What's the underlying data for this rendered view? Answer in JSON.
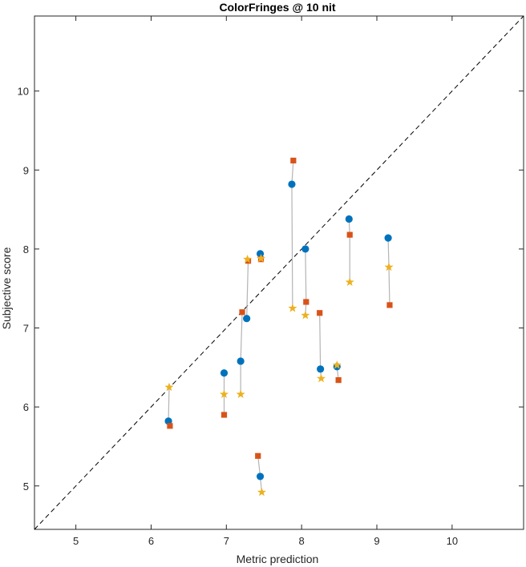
{
  "chart_data": {
    "type": "scatter",
    "title": "ColorFringes @ 10 nit",
    "xlabel": "Metric prediction",
    "ylabel": "Subjective score",
    "xlim": [
      4.45,
      10.95
    ],
    "ylim": [
      4.45,
      10.95
    ],
    "xticks": [
      "5",
      "6",
      "7",
      "8",
      "9",
      "10"
    ],
    "yticks": [
      "5",
      "6",
      "7",
      "8",
      "9",
      "10"
    ],
    "reference_line": "y = x",
    "grid": false,
    "legend": "none",
    "colors": {
      "circle": "#0072BD",
      "square": "#D95319",
      "star": "#EDB120",
      "connector": "#b4b4b4",
      "reference": "#000000",
      "axis": "#262626"
    },
    "groups": [
      {
        "circle": [
          6.23,
          5.82
        ],
        "square": [
          6.25,
          5.76
        ],
        "star": [
          6.24,
          6.25
        ]
      },
      {
        "circle": [
          6.97,
          6.43
        ],
        "square": [
          6.97,
          5.9
        ],
        "star": [
          6.97,
          6.16
        ]
      },
      {
        "circle": [
          7.19,
          6.58
        ],
        "square": [
          7.21,
          7.2
        ],
        "star": [
          7.19,
          6.16
        ]
      },
      {
        "circle": [
          7.27,
          7.12
        ],
        "square": [
          7.29,
          7.85
        ],
        "star": [
          7.28,
          7.87
        ]
      },
      {
        "circle": [
          7.45,
          7.94
        ],
        "square": [
          7.46,
          7.87
        ],
        "star": [
          7.46,
          7.88
        ]
      },
      {
        "circle": [
          7.45,
          5.12
        ],
        "square": [
          7.42,
          5.38
        ],
        "star": [
          7.47,
          4.92
        ]
      },
      {
        "circle": [
          7.87,
          8.82
        ],
        "square": [
          7.89,
          9.12
        ],
        "star": [
          7.88,
          7.25
        ]
      },
      {
        "circle": [
          8.05,
          8.0
        ],
        "square": [
          8.06,
          7.33
        ],
        "star": [
          8.05,
          7.16
        ]
      },
      {
        "circle": [
          8.25,
          6.48
        ],
        "square": [
          8.24,
          7.19
        ],
        "star": [
          8.26,
          6.36
        ]
      },
      {
        "circle": [
          8.47,
          6.51
        ],
        "square": [
          8.49,
          6.34
        ],
        "star": [
          8.47,
          6.53
        ]
      },
      {
        "circle": [
          8.63,
          8.38
        ],
        "square": [
          8.64,
          8.18
        ],
        "star": [
          8.64,
          7.58
        ]
      },
      {
        "circle": [
          9.15,
          8.14
        ],
        "square": [
          9.17,
          7.29
        ],
        "star": [
          9.16,
          7.77
        ]
      }
    ]
  }
}
